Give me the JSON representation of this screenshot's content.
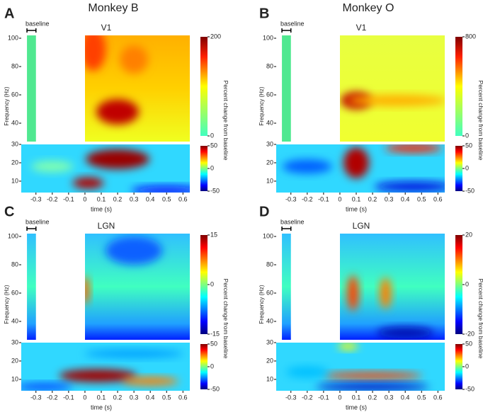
{
  "chart_data": [
    {
      "type": "heatmap",
      "letter": "A",
      "monkey": "Monkey B",
      "area": "V1",
      "baseline_label": "baseline",
      "xlabel": "time (s)",
      "xlim": [
        -0.39,
        0.642
      ],
      "xticks": [
        -0.3,
        -0.2,
        -0.1,
        0,
        0.1,
        0.2,
        0.3,
        0.4,
        0.5,
        0.6
      ],
      "ylabel": "Frequency (Hz)",
      "ylim": [
        27,
        102
      ],
      "yticks": [
        40,
        60,
        80,
        100
      ],
      "low_ylim": [
        3.8,
        30
      ],
      "low_yticks": [
        10,
        20,
        30
      ],
      "colorbar_label": "Percent change from baseline",
      "clim": [
        0,
        200
      ],
      "cticks": [
        0,
        200
      ],
      "low_clim": [
        -50,
        50
      ],
      "low_cticks": [
        -50,
        0,
        50
      ]
    },
    {
      "type": "heatmap",
      "letter": "B",
      "monkey": "Monkey O",
      "area": "V1",
      "baseline_label": "baseline",
      "xlabel": "time (s)",
      "xlim": [
        -0.39,
        0.642
      ],
      "xticks": [
        -0.3,
        -0.2,
        -0.1,
        0,
        0.1,
        0.2,
        0.3,
        0.4,
        0.5,
        0.6
      ],
      "ylabel": "Frequency (Hz)",
      "ylim": [
        27,
        102
      ],
      "yticks": [
        40,
        60,
        80,
        100
      ],
      "low_ylim": [
        3.8,
        30
      ],
      "low_yticks": [
        10,
        20,
        30
      ],
      "colorbar_label": "Percent change from baseline",
      "clim": [
        0,
        800
      ],
      "cticks": [
        0,
        800
      ],
      "low_clim": [
        -50,
        50
      ],
      "low_cticks": [
        -50,
        0,
        50
      ]
    },
    {
      "type": "heatmap",
      "letter": "C",
      "area": "LGN",
      "baseline_label": "baseline",
      "xlabel": "time (s)",
      "xlim": [
        -0.39,
        0.642
      ],
      "xticks": [
        -0.3,
        -0.2,
        -0.1,
        0,
        0.1,
        0.2,
        0.3,
        0.4,
        0.5,
        0.6
      ],
      "ylabel": "Frequency (Hz)",
      "ylim": [
        27,
        102
      ],
      "yticks": [
        40,
        60,
        80,
        100
      ],
      "low_ylim": [
        3.8,
        30
      ],
      "low_yticks": [
        10,
        20,
        30
      ],
      "colorbar_label": "Percent change from baseline",
      "clim": [
        -15,
        15
      ],
      "cticks": [
        -15,
        0,
        15
      ],
      "low_clim": [
        -50,
        50
      ],
      "low_cticks": [
        -50,
        0,
        50
      ]
    },
    {
      "type": "heatmap",
      "letter": "D",
      "area": "LGN",
      "baseline_label": "baseline",
      "xlabel": "time (s)",
      "xlim": [
        -0.39,
        0.642
      ],
      "xticks": [
        -0.3,
        -0.2,
        -0.1,
        0,
        0.1,
        0.2,
        0.3,
        0.4,
        0.5,
        0.6
      ],
      "ylabel": "Frequency (Hz)",
      "ylim": [
        27,
        102
      ],
      "yticks": [
        40,
        60,
        80,
        100
      ],
      "low_ylim": [
        3.8,
        30
      ],
      "low_yticks": [
        10,
        20,
        30
      ],
      "colorbar_label": "Percent change from baseline",
      "clim": [
        -20,
        20
      ],
      "cticks": [
        -20,
        0,
        20
      ],
      "low_clim": [
        -50,
        50
      ],
      "low_cticks": [
        -50,
        0,
        50
      ]
    }
  ]
}
